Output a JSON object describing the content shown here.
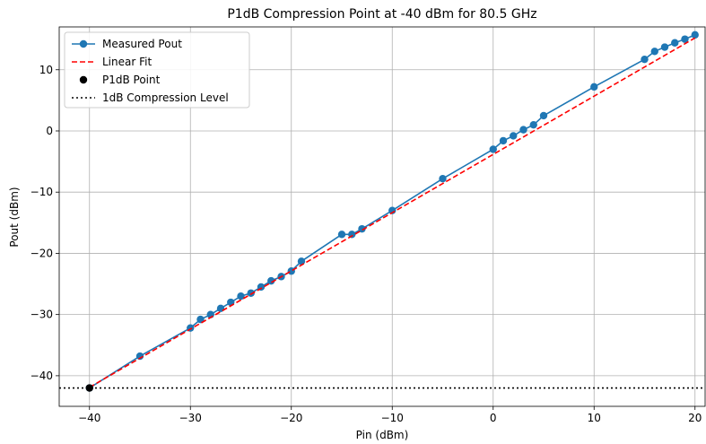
{
  "chart_data": {
    "type": "line",
    "title": "P1dB Compression Point at -40 dBm for 80.5 GHz",
    "xlabel": "Pin (dBm)",
    "ylabel": "Pout (dBm)",
    "xlim": [
      -43,
      21
    ],
    "ylim": [
      -45,
      17
    ],
    "xticks": [
      -40,
      -30,
      -20,
      -10,
      0,
      10,
      20
    ],
    "yticks": [
      -40,
      -30,
      -20,
      -10,
      0,
      10
    ],
    "xtick_labels": [
      "−40",
      "−30",
      "−20",
      "−10",
      "0",
      "10",
      "20"
    ],
    "ytick_labels": [
      "−40",
      "−30",
      "−20",
      "−10",
      "0",
      "10"
    ],
    "grid": true,
    "legend_position": "top-left",
    "legend": [
      "Measured Pout",
      "Linear Fit",
      "P1dB Point",
      "1dB Compression Level"
    ],
    "series": [
      {
        "name": "Measured Pout",
        "style": "line-marker",
        "color": "#1f77b4",
        "x": [
          -40,
          -35,
          -30,
          -29,
          -28,
          -27,
          -26,
          -25,
          -24,
          -23,
          -22,
          -21,
          -20,
          -19,
          -15,
          -14,
          -13,
          -10,
          -5,
          0,
          1,
          2,
          3,
          4,
          5,
          10,
          15,
          16,
          17,
          18,
          19,
          20
        ],
        "y": [
          -42,
          -36.8,
          -32.2,
          -30.8,
          -30,
          -29,
          -28,
          -27,
          -26.5,
          -25.5,
          -24.5,
          -23.8,
          -22.9,
          -21.3,
          -16.9,
          -16.9,
          -16,
          -13,
          -7.8,
          -3,
          -1.6,
          -0.8,
          0.2,
          1,
          2.5,
          7.2,
          11.7,
          13,
          13.7,
          14.4,
          15,
          15.7
        ]
      },
      {
        "name": "Linear Fit",
        "style": "dashed-line",
        "color": "#ff0000",
        "x": [
          -40,
          20
        ],
        "y": [
          -41.9,
          15.2
        ]
      },
      {
        "name": "P1dB Point",
        "style": "marker",
        "color": "#000000",
        "x": [
          -40
        ],
        "y": [
          -42
        ]
      },
      {
        "name": "1dB Compression Level",
        "style": "dotted-hline",
        "color": "#000000",
        "y": -42
      }
    ]
  }
}
